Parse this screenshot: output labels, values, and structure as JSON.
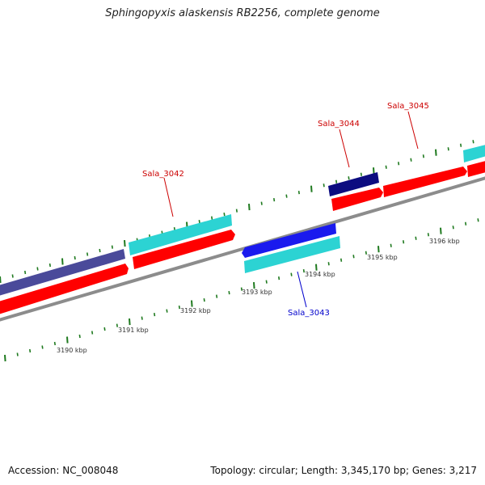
{
  "title": "Sphingopyxis alaskensis RB2256, complete genome",
  "footer": {
    "accession": "Accession: NC_008048",
    "summary": "Topology: circular; Length: 3,345,170 bp; Genes: 3,217"
  },
  "scale_labels": [
    "3190 kbp",
    "3191 kbp",
    "3192 kbp",
    "3193 kbp",
    "3194 kbp",
    "3195 kbp",
    "3196 kbp"
  ],
  "genes": [
    {
      "label": "Sala_3042",
      "label_color": "#cc0000"
    },
    {
      "label": "Sala_3043",
      "label_color": "#0000cc"
    },
    {
      "label": "Sala_3044",
      "label_color": "#cc0000"
    },
    {
      "label": "Sala_3045",
      "label_color": "#cc0000"
    }
  ],
  "colors": {
    "backbone": "#8c8c8c",
    "cds": "#ff0000",
    "cyan_feature": "#2cd3d3",
    "blue_feature": "#1a1aee",
    "navy_feature": "#0c0c80",
    "slate_feature": "#4a4a9a",
    "tick": "#1f7a1f"
  }
}
